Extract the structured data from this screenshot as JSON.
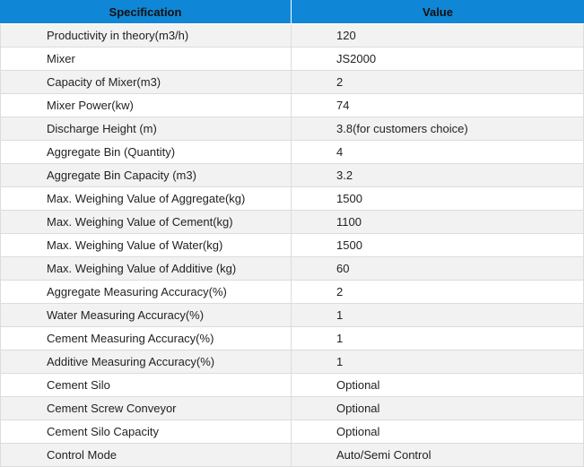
{
  "table": {
    "headers": [
      "Specification",
      "Value"
    ],
    "rows": [
      [
        "Productivity in theory(m3/h)",
        "120"
      ],
      [
        "Mixer",
        "JS2000"
      ],
      [
        "Capacity of Mixer(m3)",
        "2"
      ],
      [
        "Mixer Power(kw)",
        "74"
      ],
      [
        "Discharge Height (m)",
        "3.8(for customers choice)"
      ],
      [
        "Aggregate Bin (Quantity)",
        "4"
      ],
      [
        "Aggregate Bin Capacity (m3)",
        "3.2"
      ],
      [
        "Max. Weighing Value of Aggregate(kg)",
        "1500"
      ],
      [
        "Max. Weighing Value of Cement(kg)",
        "1100"
      ],
      [
        "Max. Weighing Value of Water(kg)",
        "1500"
      ],
      [
        "Max. Weighing Value of Additive (kg)",
        "60"
      ],
      [
        "Aggregate Measuring Accuracy(%)",
        "2"
      ],
      [
        "Water Measuring Accuracy(%)",
        "1"
      ],
      [
        "Cement Measuring Accuracy(%)",
        "1"
      ],
      [
        "Additive Measuring Accuracy(%)",
        "1"
      ],
      [
        "Cement Silo",
        "Optional"
      ],
      [
        "Cement Screw Conveyor",
        "Optional"
      ],
      [
        "Cement Silo Capacity",
        "Optional"
      ],
      [
        "Control Mode",
        "Auto/Semi Control"
      ]
    ]
  },
  "colors": {
    "header_bg": "#0f87d6",
    "row_alt_bg": "#f2f2f2",
    "border": "#dcdcdc"
  }
}
